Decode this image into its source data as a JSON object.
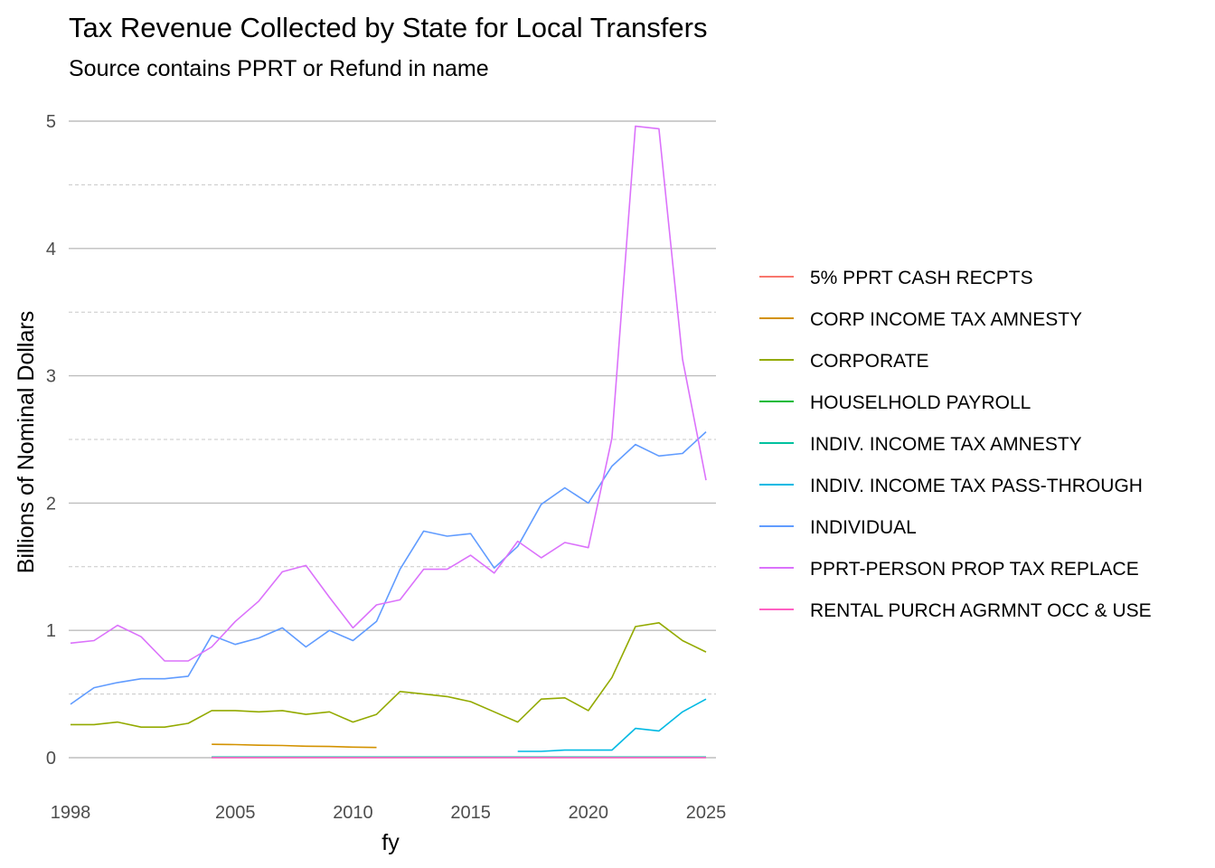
{
  "chart_data": {
    "type": "line",
    "title": "Tax Revenue Collected by State for Local Transfers",
    "subtitle": "Source contains PPRT or Refund in name",
    "xlabel": "fy",
    "ylabel": "Billions of Nominal Dollars",
    "xlim": [
      1998,
      2025
    ],
    "ylim": [
      -0.2,
      5.1
    ],
    "x_ticks": [
      "1998",
      "2005",
      "2010",
      "2015",
      "2020",
      "2025"
    ],
    "x_tick_values": [
      1998,
      2005,
      2010,
      2015,
      2020,
      2025
    ],
    "y_ticks": [
      "0",
      "1",
      "2",
      "3",
      "4",
      "5"
    ],
    "y_tick_values": [
      0,
      1,
      2,
      3,
      4,
      5
    ],
    "grid": true,
    "legend_position": "right",
    "series": [
      {
        "name": "5% PPRT CASH RECPTS",
        "color": "#F8766D",
        "points": []
      },
      {
        "name": "CORP INCOME TAX AMNESTY",
        "color": "#D39200",
        "points": [
          [
            2004,
            0.105
          ],
          [
            2005,
            0.103
          ],
          [
            2006,
            0.098
          ],
          [
            2007,
            0.096
          ],
          [
            2008,
            0.09
          ],
          [
            2009,
            0.088
          ],
          [
            2010,
            0.083
          ],
          [
            2011,
            0.08
          ]
        ]
      },
      {
        "name": "CORPORATE",
        "color": "#93AA00",
        "points": [
          [
            1998,
            0.26
          ],
          [
            1999,
            0.26
          ],
          [
            2000,
            0.28
          ],
          [
            2001,
            0.24
          ],
          [
            2002,
            0.24
          ],
          [
            2003,
            0.27
          ],
          [
            2004,
            0.37
          ],
          [
            2005,
            0.37
          ],
          [
            2006,
            0.36
          ],
          [
            2007,
            0.37
          ],
          [
            2008,
            0.34
          ],
          [
            2009,
            0.36
          ],
          [
            2010,
            0.28
          ],
          [
            2011,
            0.34
          ],
          [
            2012,
            0.52
          ],
          [
            2013,
            0.5
          ],
          [
            2014,
            0.48
          ],
          [
            2015,
            0.44
          ],
          [
            2016,
            0.36
          ],
          [
            2017,
            0.28
          ],
          [
            2018,
            0.46
          ],
          [
            2019,
            0.47
          ],
          [
            2020,
            0.37
          ],
          [
            2021,
            0.63
          ],
          [
            2022,
            1.03
          ],
          [
            2023,
            1.06
          ],
          [
            2024,
            0.92
          ],
          [
            2025,
            0.83
          ]
        ]
      },
      {
        "name": "HOUSELHOLD PAYROLL",
        "color": "#00BA38",
        "points": [
          [
            2004,
            0.003
          ],
          [
            2005,
            0.003
          ],
          [
            2006,
            0.003
          ],
          [
            2007,
            0.003
          ],
          [
            2008,
            0.003
          ],
          [
            2009,
            0.003
          ],
          [
            2010,
            0.003
          ],
          [
            2011,
            0.003
          ],
          [
            2012,
            0.003
          ],
          [
            2013,
            0.003
          ],
          [
            2014,
            0.003
          ],
          [
            2015,
            0.003
          ],
          [
            2016,
            0.003
          ],
          [
            2017,
            0.003
          ],
          [
            2018,
            0.003
          ],
          [
            2019,
            0.003
          ],
          [
            2020,
            0.003
          ],
          [
            2021,
            0.003
          ],
          [
            2022,
            0.003
          ],
          [
            2023,
            0.003
          ],
          [
            2024,
            0.003
          ],
          [
            2025,
            0.003
          ]
        ]
      },
      {
        "name": "INDIV. INCOME TAX AMNESTY",
        "color": "#00C19F",
        "points": [
          [
            2004,
            0.005
          ],
          [
            2005,
            0.005
          ],
          [
            2006,
            0.005
          ],
          [
            2007,
            0.005
          ],
          [
            2008,
            0.005
          ],
          [
            2009,
            0.005
          ],
          [
            2010,
            0.005
          ],
          [
            2011,
            0.005
          ],
          [
            2012,
            0.005
          ],
          [
            2013,
            0.005
          ],
          [
            2014,
            0.005
          ],
          [
            2015,
            0.005
          ],
          [
            2016,
            0.005
          ],
          [
            2017,
            0.005
          ],
          [
            2018,
            0.005
          ],
          [
            2019,
            0.005
          ],
          [
            2020,
            0.005
          ],
          [
            2021,
            0.005
          ],
          [
            2022,
            0.005
          ],
          [
            2023,
            0.005
          ],
          [
            2024,
            0.005
          ],
          [
            2025,
            0.005
          ]
        ]
      },
      {
        "name": "INDIV. INCOME TAX PASS-THROUGH",
        "color": "#00B9E3",
        "points": [
          [
            2017,
            0.05
          ],
          [
            2018,
            0.05
          ],
          [
            2019,
            0.06
          ],
          [
            2020,
            0.06
          ],
          [
            2021,
            0.06
          ],
          [
            2022,
            0.23
          ],
          [
            2023,
            0.21
          ],
          [
            2024,
            0.36
          ],
          [
            2025,
            0.46
          ]
        ]
      },
      {
        "name": "INDIVIDUAL",
        "color": "#619CFF",
        "points": [
          [
            1998,
            0.42
          ],
          [
            1999,
            0.55
          ],
          [
            2000,
            0.59
          ],
          [
            2001,
            0.62
          ],
          [
            2002,
            0.62
          ],
          [
            2003,
            0.64
          ],
          [
            2004,
            0.96
          ],
          [
            2005,
            0.89
          ],
          [
            2006,
            0.94
          ],
          [
            2007,
            1.02
          ],
          [
            2008,
            0.87
          ],
          [
            2009,
            1.0
          ],
          [
            2010,
            0.92
          ],
          [
            2011,
            1.07
          ],
          [
            2012,
            1.48
          ],
          [
            2013,
            1.78
          ],
          [
            2014,
            1.74
          ],
          [
            2015,
            1.76
          ],
          [
            2016,
            1.49
          ],
          [
            2017,
            1.66
          ],
          [
            2018,
            1.99
          ],
          [
            2019,
            2.12
          ],
          [
            2020,
            2.0
          ],
          [
            2021,
            2.29
          ],
          [
            2022,
            2.46
          ],
          [
            2023,
            2.37
          ],
          [
            2024,
            2.39
          ],
          [
            2025,
            2.56
          ]
        ]
      },
      {
        "name": "PPRT-PERSON PROP TAX REPLACE",
        "color": "#DB72FB",
        "points": [
          [
            1998,
            0.9
          ],
          [
            1999,
            0.92
          ],
          [
            2000,
            1.04
          ],
          [
            2001,
            0.95
          ],
          [
            2002,
            0.76
          ],
          [
            2003,
            0.76
          ],
          [
            2004,
            0.87
          ],
          [
            2005,
            1.07
          ],
          [
            2006,
            1.23
          ],
          [
            2007,
            1.46
          ],
          [
            2008,
            1.51
          ],
          [
            2009,
            1.26
          ],
          [
            2010,
            1.02
          ],
          [
            2011,
            1.2
          ],
          [
            2012,
            1.24
          ],
          [
            2013,
            1.48
          ],
          [
            2014,
            1.48
          ],
          [
            2015,
            1.59
          ],
          [
            2016,
            1.45
          ],
          [
            2017,
            1.7
          ],
          [
            2018,
            1.57
          ],
          [
            2019,
            1.69
          ],
          [
            2020,
            1.65
          ],
          [
            2021,
            2.51
          ],
          [
            2022,
            4.96
          ],
          [
            2023,
            4.94
          ],
          [
            2024,
            3.13
          ],
          [
            2025,
            2.18
          ]
        ]
      },
      {
        "name": "RENTAL PURCH AGRMNT OCC & USE",
        "color": "#FF61C3",
        "points": [
          [
            2004,
            0.001
          ],
          [
            2005,
            0.001
          ],
          [
            2006,
            0.001
          ],
          [
            2007,
            0.001
          ],
          [
            2008,
            0.001
          ],
          [
            2009,
            0.001
          ],
          [
            2010,
            0.001
          ],
          [
            2011,
            0.001
          ],
          [
            2012,
            0.001
          ],
          [
            2013,
            0.001
          ],
          [
            2014,
            0.001
          ],
          [
            2015,
            0.001
          ],
          [
            2016,
            0.001
          ],
          [
            2017,
            0.001
          ],
          [
            2018,
            0.001
          ],
          [
            2019,
            0.001
          ],
          [
            2020,
            0.001
          ],
          [
            2021,
            0.001
          ],
          [
            2022,
            0.001
          ],
          [
            2023,
            0.001
          ],
          [
            2024,
            0.001
          ],
          [
            2025,
            0.001
          ]
        ]
      }
    ]
  }
}
